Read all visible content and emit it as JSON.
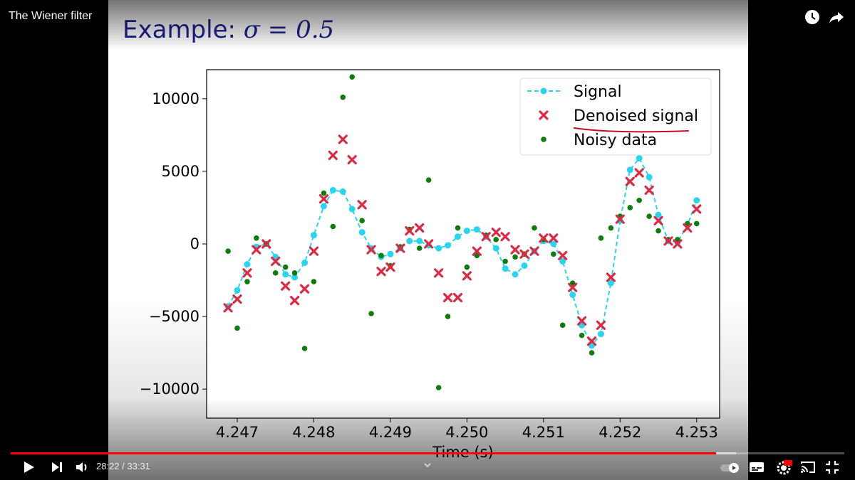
{
  "window": {
    "title": "The Wiener filter"
  },
  "slide": {
    "title_text": "Example: ",
    "title_symbol": "σ = 0.5"
  },
  "player": {
    "current_time": "28:22",
    "duration": "33:31",
    "time_display": "28:22 / 33:31",
    "progress_fraction": 0.8463,
    "buffer_fraction": 0.87
  },
  "icons": {
    "watch_later": "clock-icon",
    "share": "share-arrow-icon",
    "play": "play-icon",
    "next": "next-icon",
    "volume": "volume-icon",
    "autoplay": "autoplay-toggle-icon",
    "subtitles": "subtitles-icon",
    "settings": "settings-gear-icon",
    "cast": "cast-icon",
    "fullscreen": "exit-fullscreen-icon",
    "chevron": "chevron-down-icon"
  },
  "chart_data": {
    "type": "line",
    "xlabel": "Time (s)",
    "ylabel": "",
    "xlim": [
      4.2466,
      4.2533
    ],
    "ylim": [
      -12000,
      12000
    ],
    "xticks": [
      4.247,
      4.248,
      4.249,
      4.25,
      4.251,
      4.252,
      4.253
    ],
    "xtick_labels": [
      "4.247",
      "4.248",
      "4.249",
      "4.250",
      "4.251",
      "4.252",
      "4.253"
    ],
    "yticks": [
      -10000,
      -5000,
      0,
      5000,
      10000
    ],
    "ytick_labels": [
      "−10000",
      "−5000",
      "0",
      "5000",
      "10000"
    ],
    "grid": false,
    "legend_position": "top-right",
    "colors": {
      "signal": "#29d4f0",
      "denoised": "#dc2a45",
      "noisy": "#0d7d0d"
    },
    "series": [
      {
        "name": "Signal",
        "style": "dashed-line-with-circles",
        "x": [
          4.24688,
          4.247,
          4.24713,
          4.24725,
          4.24738,
          4.2475,
          4.24763,
          4.24775,
          4.24788,
          4.248,
          4.24813,
          4.24825,
          4.24838,
          4.2485,
          4.24863,
          4.24875,
          4.24888,
          4.249,
          4.24913,
          4.24925,
          4.24938,
          4.2495,
          4.24963,
          4.24975,
          4.24988,
          4.25,
          4.25013,
          4.25025,
          4.25038,
          4.2505,
          4.25063,
          4.25075,
          4.25088,
          4.251,
          4.25113,
          4.25125,
          4.25138,
          4.2515,
          4.25163,
          4.25175,
          4.25188,
          4.252,
          4.25213,
          4.25225,
          4.25238,
          4.2525,
          4.25263,
          4.25275,
          4.25288,
          4.253
        ],
        "values": [
          -4300,
          -3200,
          -1400,
          -200,
          0,
          -900,
          -2100,
          -2300,
          -1300,
          600,
          2600,
          3700,
          3600,
          2400,
          800,
          -300,
          -900,
          -700,
          -300,
          200,
          200,
          -100,
          -300,
          -100,
          500,
          900,
          1000,
          500,
          -300,
          -1700,
          -2100,
          -1500,
          -500,
          200,
          0,
          -1200,
          -3500,
          -5600,
          -7000,
          -6200,
          -2700,
          1600,
          5100,
          5900,
          4600,
          2000,
          200,
          100,
          1300,
          3000
        ]
      },
      {
        "name": "Denoised signal",
        "style": "x-markers",
        "x": [
          4.24688,
          4.247,
          4.24713,
          4.24725,
          4.24738,
          4.2475,
          4.24763,
          4.24775,
          4.24788,
          4.248,
          4.24813,
          4.24825,
          4.24838,
          4.2485,
          4.24863,
          4.24875,
          4.24888,
          4.249,
          4.24913,
          4.24925,
          4.24938,
          4.2495,
          4.24963,
          4.24975,
          4.24988,
          4.25,
          4.25013,
          4.25025,
          4.25038,
          4.2505,
          4.25063,
          4.25075,
          4.25088,
          4.251,
          4.25113,
          4.25125,
          4.25138,
          4.2515,
          4.25163,
          4.25175,
          4.25188,
          4.252,
          4.25213,
          4.25225,
          4.25238,
          4.2525,
          4.25263,
          4.25275,
          4.25288,
          4.253
        ],
        "values": [
          -4400,
          -3800,
          -2000,
          -400,
          0,
          -1200,
          -2900,
          -3900,
          -3100,
          -500,
          3100,
          6100,
          7200,
          5800,
          2700,
          -400,
          -1900,
          -1600,
          -300,
          900,
          1100,
          0,
          -2000,
          -3700,
          -3700,
          -2200,
          -500,
          500,
          800,
          500,
          -400,
          -700,
          -500,
          400,
          400,
          -800,
          -3000,
          -5300,
          -6700,
          -5600,
          -2300,
          1700,
          4300,
          4900,
          3700,
          1600,
          200,
          0,
          1100,
          2400
        ]
      },
      {
        "name": "Noisy data",
        "style": "dot-markers",
        "x": [
          4.24688,
          4.247,
          4.24713,
          4.24725,
          4.24738,
          4.2475,
          4.24763,
          4.24775,
          4.24788,
          4.248,
          4.24813,
          4.24825,
          4.24838,
          4.2485,
          4.24863,
          4.24875,
          4.24888,
          4.249,
          4.24913,
          4.24925,
          4.24938,
          4.2495,
          4.24963,
          4.24975,
          4.24988,
          4.25,
          4.25013,
          4.25025,
          4.25038,
          4.2505,
          4.25063,
          4.25075,
          4.25088,
          4.251,
          4.25113,
          4.25125,
          4.25138,
          4.2515,
          4.25163,
          4.25175,
          4.25188,
          4.252,
          4.25213,
          4.25225,
          4.25238,
          4.2525,
          4.25263,
          4.25275,
          4.25288,
          4.253
        ],
        "values": [
          -500,
          -5800,
          -2600,
          400,
          0,
          -2000,
          -1600,
          -2000,
          -7200,
          -2600,
          3500,
          1200,
          10100,
          11500,
          1600,
          -4800,
          -800,
          -1500,
          -200,
          1000,
          -300,
          4400,
          -9900,
          -5000,
          1100,
          -1600,
          -800,
          600,
          300,
          -1200,
          -900,
          -700,
          1100,
          300,
          -700,
          -5600,
          -2700,
          -6300,
          -7500,
          400,
          1100,
          1900,
          2500,
          3000,
          1900,
          900,
          300,
          300,
          1400,
          1400
        ]
      }
    ]
  }
}
